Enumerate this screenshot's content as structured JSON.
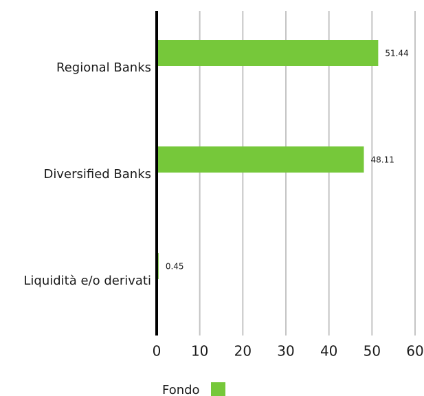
{
  "chart_data": {
    "type": "bar",
    "orientation": "horizontal",
    "categories": [
      "Regional Banks",
      "Diversified Banks",
      "Liquidità e/o derivati"
    ],
    "series": [
      {
        "name": "Fondo",
        "values": [
          51.44,
          48.11,
          0.45
        ],
        "labels": [
          "51.44",
          "48.11",
          "0.45"
        ],
        "color": "#76c83a"
      }
    ],
    "xlim": [
      0,
      60
    ],
    "xticks": [
      0,
      10,
      20,
      30,
      40,
      50,
      60
    ],
    "xtick_labels": [
      "0",
      "10",
      "20",
      "30",
      "40",
      "50",
      "60"
    ],
    "grid": true,
    "gridColor": "#c4c4c4",
    "axisColor": "#000000",
    "legend_position": "bottom-center"
  }
}
